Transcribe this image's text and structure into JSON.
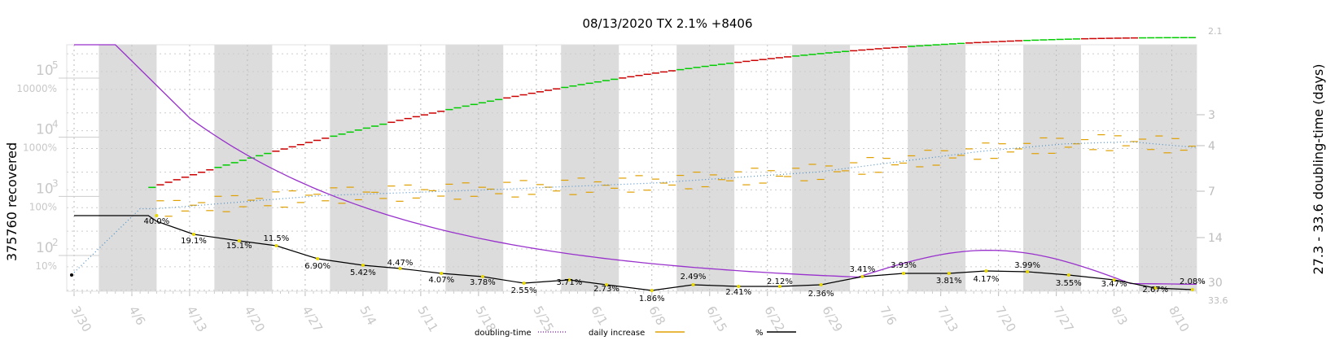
{
  "chart_data": {
    "type": "line",
    "title": "08/13/2020 TX 2.1% +8406",
    "ylabel_left": "375760 recovered",
    "ylabel_right": "27.3 - 33.6 doubling-time (days)",
    "x_ticks": [
      "3/30",
      "4/6",
      "4/13",
      "4/20",
      "4/27",
      "5/4",
      "5/11",
      "5/18",
      "5/25",
      "6/1",
      "6/8",
      "6/15",
      "6/22",
      "6/29",
      "7/6",
      "7/13",
      "7/20",
      "7/27",
      "8/3",
      "8/10"
    ],
    "x_range_days": [
      0,
      136
    ],
    "left_count_ticks": [
      {
        "label": "10",
        "sup": "5",
        "exp": 5
      },
      {
        "label": "10",
        "sup": "4",
        "exp": 4
      },
      {
        "label": "10",
        "sup": "3",
        "exp": 3
      },
      {
        "label": "10",
        "sup": "2",
        "exp": 2
      }
    ],
    "left_pct_ticks": [
      "10000%",
      "1000%",
      "100%",
      "10%"
    ],
    "right_ticks": [
      "2.1",
      "3",
      "4",
      "7",
      "14",
      "30",
      "33.6"
    ],
    "legend": [
      {
        "label": "doubling-time",
        "color": "#9932cc",
        "style": "dotted"
      },
      {
        "label": "daily increase",
        "color": "#e0a000",
        "style": "solid"
      },
      {
        "label": "%",
        "color": "#000000",
        "style": "solid"
      }
    ],
    "pct_labels": [
      {
        "day": 10,
        "label": "40.0%"
      },
      {
        "day": 14.5,
        "label": "19.1%"
      },
      {
        "day": 20,
        "label": "15.1%"
      },
      {
        "day": 24.5,
        "label": "11.5%"
      },
      {
        "day": 29.5,
        "label": "6.90%"
      },
      {
        "day": 35,
        "label": "5.42%"
      },
      {
        "day": 39.5,
        "label": "4.47%"
      },
      {
        "day": 44.5,
        "label": "4.07%"
      },
      {
        "day": 49.5,
        "label": "3.78%"
      },
      {
        "day": 54.5,
        "label": "2.55%"
      },
      {
        "day": 60,
        "label": "3.71%"
      },
      {
        "day": 64.5,
        "label": "2.73%"
      },
      {
        "day": 70,
        "label": "1.86%"
      },
      {
        "day": 75,
        "label": "2.49%"
      },
      {
        "day": 80.5,
        "label": "2.41%"
      },
      {
        "day": 85.5,
        "label": "2.12%"
      },
      {
        "day": 90.5,
        "label": "2.36%"
      },
      {
        "day": 95.5,
        "label": "3.41%"
      },
      {
        "day": 100.5,
        "label": "3.93%"
      },
      {
        "day": 106,
        "label": "3.81%"
      },
      {
        "day": 110.5,
        "label": "4.17%"
      },
      {
        "day": 115.5,
        "label": "3.99%"
      },
      {
        "day": 120.5,
        "label": "3.55%"
      },
      {
        "day": 126,
        "label": "3.47%"
      },
      {
        "day": 131,
        "label": "2.67%"
      },
      {
        "day": 135.5,
        "label": "2.08%"
      }
    ],
    "cumulative_recovered": {
      "start_day": 9,
      "end_day": 136,
      "start_value": 1100,
      "end_value": 375760
    },
    "daily_increase_approx": [
      {
        "day": 10,
        "value": 480
      },
      {
        "day": 20,
        "value": 620
      },
      {
        "day": 30,
        "value": 800
      },
      {
        "day": 50,
        "value": 1000
      },
      {
        "day": 70,
        "value": 1300
      },
      {
        "day": 90,
        "value": 2000
      },
      {
        "day": 100,
        "value": 3000
      },
      {
        "day": 110,
        "value": 4500
      },
      {
        "day": 120,
        "value": 6000
      },
      {
        "day": 128,
        "value": 6500
      },
      {
        "day": 136,
        "value": 5200
      }
    ],
    "weekend_shading": true
  }
}
